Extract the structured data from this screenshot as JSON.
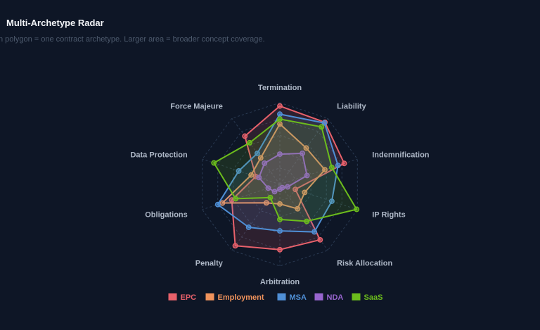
{
  "header": {
    "title": "Multi-Archetype Radar",
    "subtitle": "n polygon = one contract archetype. Larger area = broader concept coverage."
  },
  "chart_data": {
    "type": "radar",
    "title": "Multi-Archetype Radar",
    "axes": [
      "Termination",
      "Liability",
      "Indemnification",
      "IP Rights",
      "Risk Allocation",
      "Arbitration",
      "Penalty",
      "Obligations",
      "Data Protection",
      "Force Majeure"
    ],
    "rmax": 1.0,
    "grid_levels": 5,
    "legend_position": "bottom",
    "series": [
      {
        "name": "EPC",
        "color": "#e8616b",
        "values": [
          0.96,
          0.94,
          0.83,
          0.2,
          0.84,
          0.8,
          0.93,
          0.62,
          0.31,
          0.73
        ]
      },
      {
        "name": "Employment",
        "color": "#f0935c",
        "values": [
          0.74,
          0.55,
          0.58,
          0.32,
          0.37,
          0.24,
          0.28,
          0.74,
          0.37,
          0.4
        ]
      },
      {
        "name": "MSA",
        "color": "#4f8fd6",
        "values": [
          0.86,
          0.93,
          0.75,
          0.67,
          0.72,
          0.57,
          0.65,
          0.8,
          0.53,
          0.47
        ]
      },
      {
        "name": "NDA",
        "color": "#9865cf",
        "values": [
          0.37,
          0.47,
          0.35,
          0.1,
          0.05,
          0.06,
          0.11,
          0.15,
          0.27,
          0.32
        ]
      },
      {
        "name": "SaaS",
        "color": "#6cbd1c",
        "values": [
          0.8,
          0.87,
          0.67,
          0.99,
          0.56,
          0.43,
          0.2,
          0.57,
          0.85,
          0.63
        ]
      }
    ]
  }
}
